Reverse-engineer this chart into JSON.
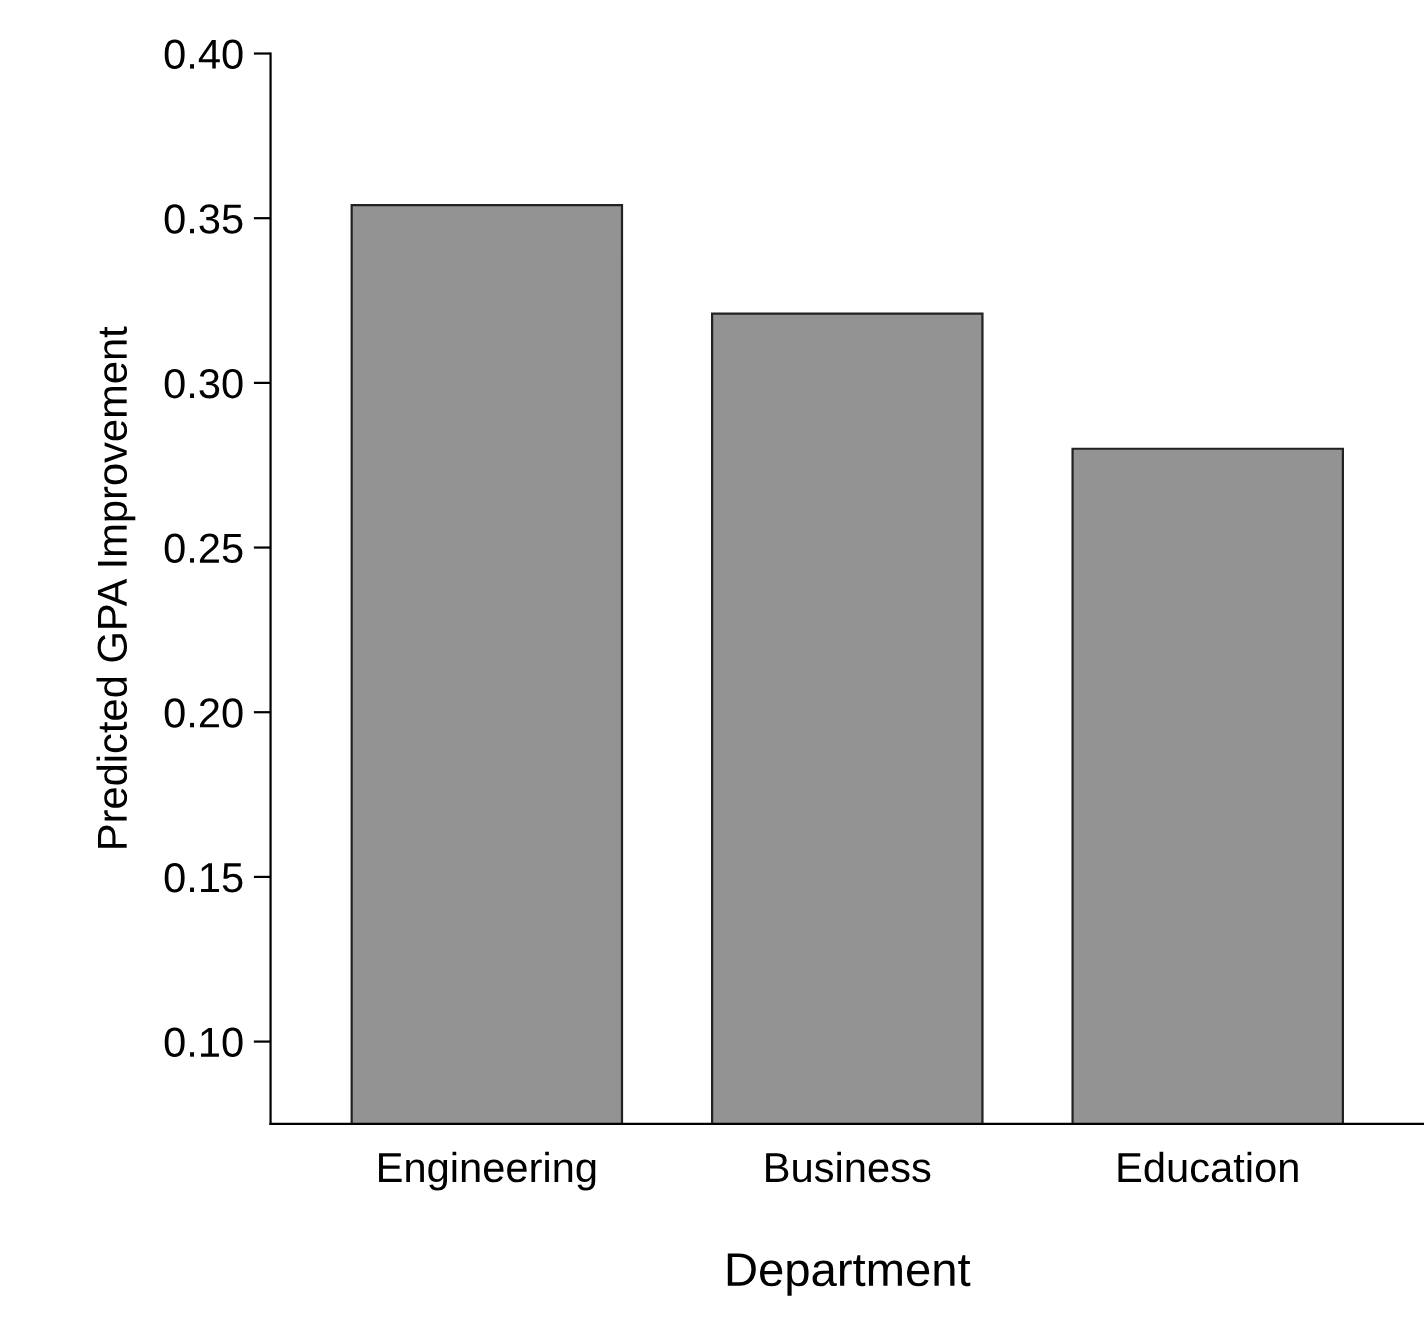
{
  "chart_data": {
    "type": "bar",
    "xlabel": "Department",
    "ylabel": "Predicted GPA Improvement",
    "categories": [
      "Engineering",
      "Business",
      "Education"
    ],
    "values": [
      0.354,
      0.321,
      0.28
    ],
    "color": "#939393",
    "ylim": [
      0.075,
      0.4
    ],
    "yticks": [
      {
        "value": 0.1,
        "label": "0.10"
      },
      0.15,
      {
        "value": 0.2,
        "label": "0.20"
      },
      0.25,
      {
        "value": 0.3,
        "label": "0.30"
      },
      0.35,
      {
        "value": 0.4,
        "label": "0.40"
      }
    ],
    "grid": false
  }
}
